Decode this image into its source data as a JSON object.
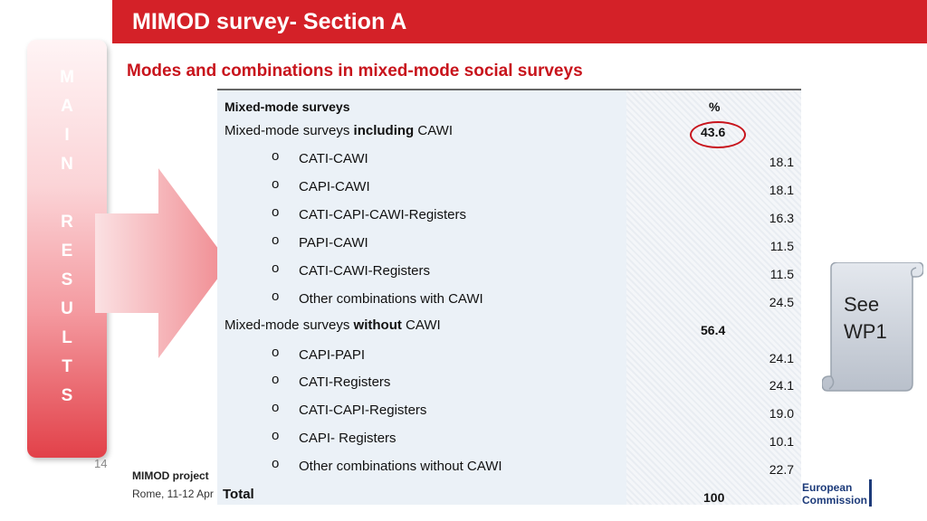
{
  "title": "MIMOD survey- Section A",
  "subtitle": "Modes and combinations in mixed-mode social surveys",
  "side_label": [
    "M",
    "A",
    "I",
    "N",
    "",
    "R",
    "E",
    "S",
    "U",
    "L",
    "T",
    "S"
  ],
  "table": {
    "header": {
      "label": "Mixed-mode surveys",
      "pct": "%"
    },
    "groups": [
      {
        "label_prefix": "Mixed-mode surveys ",
        "label_bold": "including",
        "label_suffix": " CAWI",
        "value": "43.6",
        "items": [
          {
            "bullet": "o",
            "label": "CATI-CAWI",
            "value": "18.1"
          },
          {
            "bullet": "o",
            "label": "CAPI-CAWI",
            "value": "18.1"
          },
          {
            "bullet": "o",
            "label": "CATI-CAPI-CAWI-Registers",
            "value": "16.3"
          },
          {
            "bullet": "o",
            "label": "PAPI-CAWI",
            "value": "11.5"
          },
          {
            "bullet": "o",
            "label": "CATI-CAWI-Registers",
            "value": "11.5"
          },
          {
            "bullet": "o",
            "label": "Other combinations with CAWI",
            "value": "24.5"
          }
        ]
      },
      {
        "label_prefix": "Mixed-mode surveys ",
        "label_bold": "without",
        "label_suffix": " CAWI",
        "value": "56.4",
        "items": [
          {
            "bullet": "o",
            "label": "CAPI-PAPI",
            "value": "24.1"
          },
          {
            "bullet": "o",
            "label": "CATI-Registers",
            "value": "24.1"
          },
          {
            "bullet": "o",
            "label": "CATI-CAPI-Registers",
            "value": "19.0"
          },
          {
            "bullet": "o",
            "label": "CAPI- Registers",
            "value": "10.1"
          },
          {
            "bullet": "o",
            "label": "Other combinations without CAWI",
            "value": "22.7"
          }
        ]
      }
    ],
    "total": {
      "label": "Total",
      "value": "100"
    }
  },
  "callout": {
    "line1": "See",
    "line2": "WP1"
  },
  "footer": {
    "page_number": "14",
    "project": "MIMOD project",
    "place": "Rome, 11-12 Apr"
  },
  "logo": {
    "line1": "European",
    "line2": "Commission"
  },
  "colors": {
    "accent_red": "#d42128",
    "eu_blue": "#1d3b7a"
  }
}
